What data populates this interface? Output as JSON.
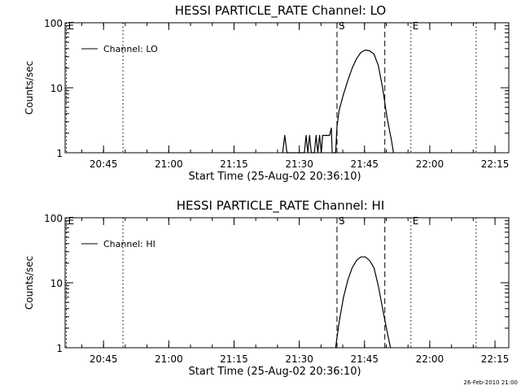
{
  "footer": {
    "date_stamp": "26-Feb-2010 21:00"
  },
  "chart_data": [
    {
      "type": "line",
      "title": "HESSI PARTICLE_RATE Channel: LO",
      "xlabel": "Start Time (25-Aug-02 20:36:10)",
      "ylabel": "Counts/sec",
      "x_unit": "minutes since 20:36:10",
      "xlim": [
        0,
        102
      ],
      "yscale": "log",
      "ylim": [
        1,
        100
      ],
      "x_ticks": [
        {
          "x": 8.83,
          "label": "20:45"
        },
        {
          "x": 23.83,
          "label": "21:00"
        },
        {
          "x": 38.83,
          "label": "21:15"
        },
        {
          "x": 53.83,
          "label": "21:30"
        },
        {
          "x": 68.83,
          "label": "21:45"
        },
        {
          "x": 83.83,
          "label": "22:00"
        },
        {
          "x": 98.83,
          "label": "22:15"
        }
      ],
      "y_ticks": [
        {
          "y": 1,
          "label": "1"
        },
        {
          "y": 10,
          "label": "10"
        },
        {
          "y": 100,
          "label": "100"
        }
      ],
      "legend": {
        "placement": "top-left",
        "label": "Channel: LO"
      },
      "markers": [
        {
          "x": 0.3,
          "style": "dotted",
          "label": "E"
        },
        {
          "x": 13.3,
          "style": "dotted",
          "label": ""
        },
        {
          "x": 62.5,
          "style": "dashed",
          "label": "S"
        },
        {
          "x": 73.5,
          "style": "dashed",
          "label": ""
        },
        {
          "x": 79.5,
          "style": "dotted",
          "label": "E"
        },
        {
          "x": 94.5,
          "style": "dotted",
          "label": ""
        }
      ],
      "series": [
        {
          "name": "Channel: LO",
          "points": [
            [
              50.0,
              1
            ],
            [
              50.5,
              1.85
            ],
            [
              51.0,
              1
            ],
            [
              55.0,
              1
            ],
            [
              55.4,
              1.85
            ],
            [
              55.8,
              1
            ],
            [
              56.2,
              1.85
            ],
            [
              56.6,
              1
            ],
            [
              57.3,
              1
            ],
            [
              57.7,
              1.85
            ],
            [
              58.1,
              1
            ],
            [
              58.5,
              1.85
            ],
            [
              58.9,
              1
            ],
            [
              59.2,
              1.85
            ],
            [
              60.8,
              1.85
            ],
            [
              61.2,
              2.4
            ],
            [
              61.4,
              1
            ],
            [
              62.2,
              1
            ],
            [
              62.5,
              2.5
            ],
            [
              63.0,
              4.5
            ],
            [
              64.0,
              8
            ],
            [
              65.0,
              13
            ],
            [
              66.0,
              20
            ],
            [
              67.0,
              28
            ],
            [
              68.0,
              35
            ],
            [
              69.0,
              38
            ],
            [
              70.0,
              37
            ],
            [
              71.0,
              33
            ],
            [
              72.0,
              22
            ],
            [
              73.0,
              10
            ],
            [
              74.0,
              3.5
            ],
            [
              75.0,
              1.6
            ],
            [
              75.5,
              1
            ]
          ]
        }
      ]
    },
    {
      "type": "line",
      "title": "HESSI PARTICLE_RATE Channel: HI",
      "xlabel": "Start Time (25-Aug-02 20:36:10)",
      "ylabel": "Counts/sec",
      "x_unit": "minutes since 20:36:10",
      "xlim": [
        0,
        102
      ],
      "yscale": "log",
      "ylim": [
        1,
        100
      ],
      "x_ticks": [
        {
          "x": 8.83,
          "label": "20:45"
        },
        {
          "x": 23.83,
          "label": "21:00"
        },
        {
          "x": 38.83,
          "label": "21:15"
        },
        {
          "x": 53.83,
          "label": "21:30"
        },
        {
          "x": 68.83,
          "label": "21:45"
        },
        {
          "x": 83.83,
          "label": "22:00"
        },
        {
          "x": 98.83,
          "label": "22:15"
        }
      ],
      "y_ticks": [
        {
          "y": 1,
          "label": "1"
        },
        {
          "y": 10,
          "label": "10"
        },
        {
          "y": 100,
          "label": "100"
        }
      ],
      "legend": {
        "placement": "top-left",
        "label": "Channel: HI"
      },
      "markers": [
        {
          "x": 0.3,
          "style": "dotted",
          "label": "E"
        },
        {
          "x": 13.3,
          "style": "dotted",
          "label": ""
        },
        {
          "x": 62.5,
          "style": "dashed",
          "label": "S"
        },
        {
          "x": 73.5,
          "style": "dashed",
          "label": ""
        },
        {
          "x": 79.5,
          "style": "dotted",
          "label": "E"
        },
        {
          "x": 94.5,
          "style": "dotted",
          "label": ""
        }
      ],
      "series": [
        {
          "name": "Channel: HI",
          "points": [
            [
              62.2,
              1
            ],
            [
              63.0,
              2.5
            ],
            [
              64.0,
              6
            ],
            [
              65.0,
              11
            ],
            [
              66.0,
              17
            ],
            [
              67.0,
              22
            ],
            [
              68.0,
              25
            ],
            [
              69.0,
              25
            ],
            [
              70.0,
              22
            ],
            [
              71.0,
              17
            ],
            [
              72.0,
              9
            ],
            [
              73.0,
              4
            ],
            [
              74.0,
              1.8
            ],
            [
              74.8,
              1
            ]
          ]
        }
      ]
    }
  ]
}
